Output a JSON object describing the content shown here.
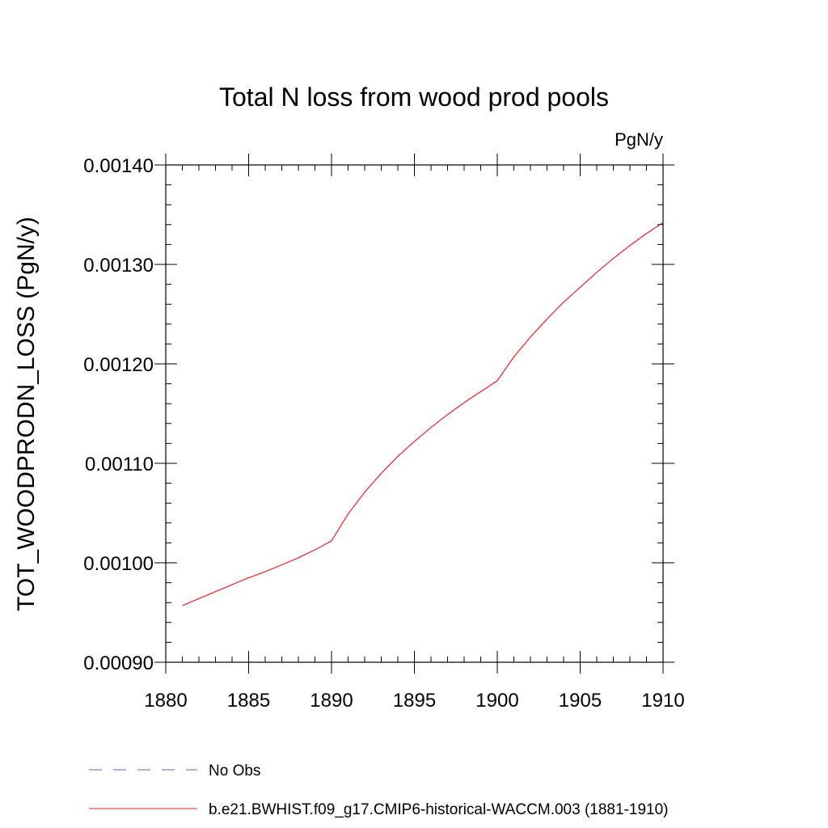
{
  "chart_data": {
    "type": "line",
    "title": "Total N loss from wood prod pools",
    "units": "PgN/y",
    "xlabel": "",
    "ylabel": "TOT_WOODPRODN_LOSS  (PgN/y)",
    "xlim": [
      1880,
      1910
    ],
    "ylim": [
      0.0009,
      0.0014
    ],
    "x_ticks": [
      1880,
      1885,
      1890,
      1895,
      1900,
      1905,
      1910
    ],
    "x_tick_labels": [
      "1880",
      "1885",
      "1890",
      "1895",
      "1900",
      "1905",
      "1910"
    ],
    "y_ticks": [
      0.0009,
      0.001,
      0.0011,
      0.0012,
      0.0013,
      0.0014
    ],
    "y_tick_labels": [
      "0.00090",
      "0.00100",
      "0.00110",
      "0.00120",
      "0.00130",
      "0.00140"
    ],
    "grid": false,
    "legend_placement": "bottom",
    "series": [
      {
        "name": "No Obs",
        "color": "#6a5acd",
        "dash": "dashed",
        "x": [],
        "y": []
      },
      {
        "name": "b.e21.BWHIST.f09_g17.CMIP6-historical-WACCM.003 (1881-1910)",
        "color": "#e8202a",
        "dash": "solid",
        "x": [
          1881,
          1882,
          1883,
          1884,
          1885,
          1886,
          1887,
          1888,
          1889,
          1890,
          1891,
          1892,
          1893,
          1894,
          1895,
          1896,
          1897,
          1898,
          1899,
          1900,
          1901,
          1902,
          1903,
          1904,
          1905,
          1906,
          1907,
          1908,
          1909,
          1910
        ],
        "y": [
          0.000957,
          0.000964,
          0.000971,
          0.000978,
          0.000985,
          0.000991,
          0.000998,
          0.001005,
          0.001013,
          0.001022,
          0.001049,
          0.001071,
          0.00109,
          0.001107,
          0.001122,
          0.001136,
          0.001149,
          0.001161,
          0.001172,
          0.001183,
          0.001207,
          0.001227,
          0.001245,
          0.001262,
          0.001277,
          0.001292,
          0.001306,
          0.001319,
          0.001331,
          0.001342
        ]
      }
    ]
  }
}
